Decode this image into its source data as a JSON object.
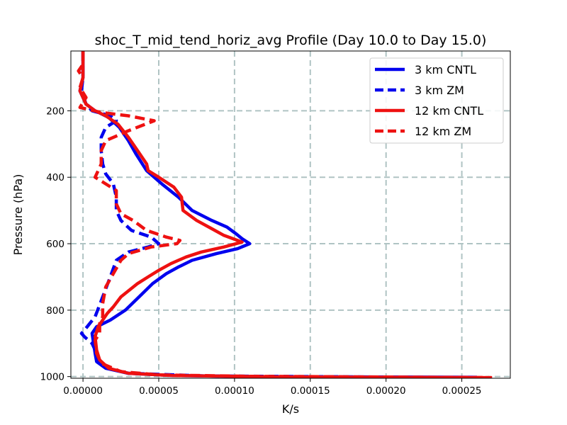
{
  "chart_data": {
    "type": "line",
    "title": "shoc_T_mid_tend_horiz_avg Profile (Day 10.0 to Day 15.0)",
    "xlabel": "K/s",
    "ylabel": "Pressure (hPa)",
    "xlim": [
      -8e-06,
      0.000282
    ],
    "ylim": [
      1005,
      20
    ],
    "y_inverted": true,
    "grid": true,
    "legend_position": "top-right",
    "x_ticks": [
      0,
      5e-05,
      0.0001,
      0.00015,
      0.0002,
      0.00025
    ],
    "x_tick_labels": [
      "0.00000",
      "0.00005",
      "0.00010",
      "0.00015",
      "0.00020",
      "0.00025"
    ],
    "y_ticks": [
      200,
      400,
      600,
      800,
      1000
    ],
    "y_tick_labels": [
      "200",
      "400",
      "600",
      "800",
      "1000"
    ],
    "colors": {
      "blue": "#0000ee",
      "red": "#ee1111",
      "grid": "#b0c4c4"
    },
    "series": [
      {
        "name": "3 km CNTL",
        "color": "#0000ee",
        "dash": false,
        "points": [
          [
            0,
            20
          ],
          [
            0,
            60
          ],
          [
            0,
            100
          ],
          [
            -2e-06,
            140
          ],
          [
            2e-06,
            180
          ],
          [
            8e-06,
            200
          ],
          [
            1.7e-05,
            220
          ],
          [
            2.4e-05,
            250
          ],
          [
            3e-05,
            290
          ],
          [
            3.5e-05,
            330
          ],
          [
            4.2e-05,
            380
          ],
          [
            5.2e-05,
            420
          ],
          [
            6.3e-05,
            460
          ],
          [
            7.2e-05,
            500
          ],
          [
            8.5e-05,
            530
          ],
          [
            9.5e-05,
            550
          ],
          [
            0.000101,
            570
          ],
          [
            0.000105,
            585
          ],
          [
            0.00011,
            600
          ],
          [
            0.000102,
            615
          ],
          [
            8.8e-05,
            630
          ],
          [
            7.2e-05,
            650
          ],
          [
            6.3e-05,
            670
          ],
          [
            5.5e-05,
            690
          ],
          [
            4.6e-05,
            720
          ],
          [
            3.7e-05,
            760
          ],
          [
            2.8e-05,
            800
          ],
          [
            1.8e-05,
            830
          ],
          [
            9e-06,
            850
          ],
          [
            6e-06,
            870
          ],
          [
            7e-06,
            900
          ],
          [
            8e-06,
            930
          ],
          [
            9e-06,
            955
          ],
          [
            1.5e-05,
            975
          ],
          [
            3e-05,
            990
          ],
          [
            6e-05,
            997
          ],
          [
            0.00012,
            1000
          ],
          [
            0.00026,
            1002
          ]
        ]
      },
      {
        "name": "3 km ZM",
        "color": "#0000ee",
        "dash": true,
        "points": [
          [
            0,
            20
          ],
          [
            0,
            60
          ],
          [
            0,
            100
          ],
          [
            -1e-06,
            140
          ],
          [
            2e-06,
            180
          ],
          [
            6e-06,
            200
          ],
          [
            1.8e-05,
            215
          ],
          [
            2.2e-05,
            230
          ],
          [
            1.5e-05,
            250
          ],
          [
            1.2e-05,
            280
          ],
          [
            1.2e-05,
            320
          ],
          [
            1.3e-05,
            360
          ],
          [
            1.5e-05,
            390
          ],
          [
            2e-05,
            420
          ],
          [
            2.2e-05,
            460
          ],
          [
            2.2e-05,
            500
          ],
          [
            2.5e-05,
            530
          ],
          [
            3.2e-05,
            560
          ],
          [
            4.5e-05,
            580
          ],
          [
            5e-05,
            600
          ],
          [
            4.3e-05,
            610
          ],
          [
            3e-05,
            625
          ],
          [
            2.2e-05,
            650
          ],
          [
            1.8e-05,
            700
          ],
          [
            1.3e-05,
            760
          ],
          [
            8e-06,
            820
          ],
          [
            1e-06,
            860
          ],
          [
            -1e-06,
            870
          ],
          [
            1e-06,
            880
          ],
          [
            6e-06,
            900
          ],
          [
            9e-06,
            930
          ],
          [
            1.1e-05,
            955
          ],
          [
            1.6e-05,
            975
          ],
          [
            3e-05,
            990
          ],
          [
            8e-05,
            998
          ],
          [
            0.00018,
            1001
          ],
          [
            0.000255,
            1003
          ]
        ]
      },
      {
        "name": "12 km CNTL",
        "color": "#ee1111",
        "dash": false,
        "points": [
          [
            0,
            20
          ],
          [
            0,
            60
          ],
          [
            0,
            100
          ],
          [
            -2e-06,
            140
          ],
          [
            2e-06,
            180
          ],
          [
            8e-06,
            200
          ],
          [
            1.5e-05,
            215
          ],
          [
            2.3e-05,
            240
          ],
          [
            3e-05,
            280
          ],
          [
            3.6e-05,
            320
          ],
          [
            4.2e-05,
            360
          ],
          [
            4.3e-05,
            380
          ],
          [
            5e-05,
            400
          ],
          [
            6e-05,
            430
          ],
          [
            6.5e-05,
            460
          ],
          [
            6.6e-05,
            500
          ],
          [
            7.5e-05,
            530
          ],
          [
            8.5e-05,
            555
          ],
          [
            9.3e-05,
            575
          ],
          [
            0.000105,
            595
          ],
          [
            9.3e-05,
            610
          ],
          [
            7.8e-05,
            625
          ],
          [
            6.8e-05,
            640
          ],
          [
            5.8e-05,
            660
          ],
          [
            5e-05,
            680
          ],
          [
            4.3e-05,
            700
          ],
          [
            3.6e-05,
            720
          ],
          [
            2.5e-05,
            760
          ],
          [
            2e-05,
            790
          ],
          [
            1.6e-05,
            810
          ],
          [
            1.3e-05,
            830
          ],
          [
            1e-05,
            850
          ],
          [
            8e-06,
            880
          ],
          [
            9e-06,
            920
          ],
          [
            1.1e-05,
            950
          ],
          [
            1.7e-05,
            975
          ],
          [
            3e-05,
            990
          ],
          [
            6e-05,
            997
          ],
          [
            0.00013,
            1001
          ],
          [
            0.00027,
            1003
          ]
        ]
      },
      {
        "name": "12 km ZM",
        "color": "#ee1111",
        "dash": true,
        "points": [
          [
            0,
            20
          ],
          [
            0,
            60
          ],
          [
            -3e-06,
            80
          ],
          [
            0,
            100
          ],
          [
            -2e-06,
            130
          ],
          [
            2e-06,
            160
          ],
          [
            -2e-06,
            190
          ],
          [
            1.2e-05,
            205
          ],
          [
            3e-05,
            215
          ],
          [
            4.7e-05,
            230
          ],
          [
            3e-05,
            260
          ],
          [
            1.5e-05,
            290
          ],
          [
            1.2e-05,
            320
          ],
          [
            1.2e-05,
            360
          ],
          [
            8e-06,
            400
          ],
          [
            1.5e-05,
            420
          ],
          [
            2.2e-05,
            440
          ],
          [
            2.2e-05,
            480
          ],
          [
            2.5e-05,
            510
          ],
          [
            3.3e-05,
            530
          ],
          [
            4.2e-05,
            560
          ],
          [
            5.5e-05,
            580
          ],
          [
            6.4e-05,
            590
          ],
          [
            6.2e-05,
            600
          ],
          [
            4.5e-05,
            610
          ],
          [
            3e-05,
            630
          ],
          [
            2.5e-05,
            650
          ],
          [
            2e-05,
            690
          ],
          [
            1.5e-05,
            730
          ],
          [
            1.3e-05,
            780
          ],
          [
            1.3e-05,
            820
          ],
          [
            1.1e-05,
            840
          ],
          [
            1.1e-05,
            870
          ],
          [
            8e-06,
            890
          ],
          [
            9e-06,
            930
          ],
          [
            1.2e-05,
            960
          ],
          [
            2.5e-05,
            985
          ],
          [
            5e-05,
            995
          ],
          [
            0.00011,
            999
          ],
          [
            0.000268,
            1003
          ]
        ]
      }
    ]
  }
}
